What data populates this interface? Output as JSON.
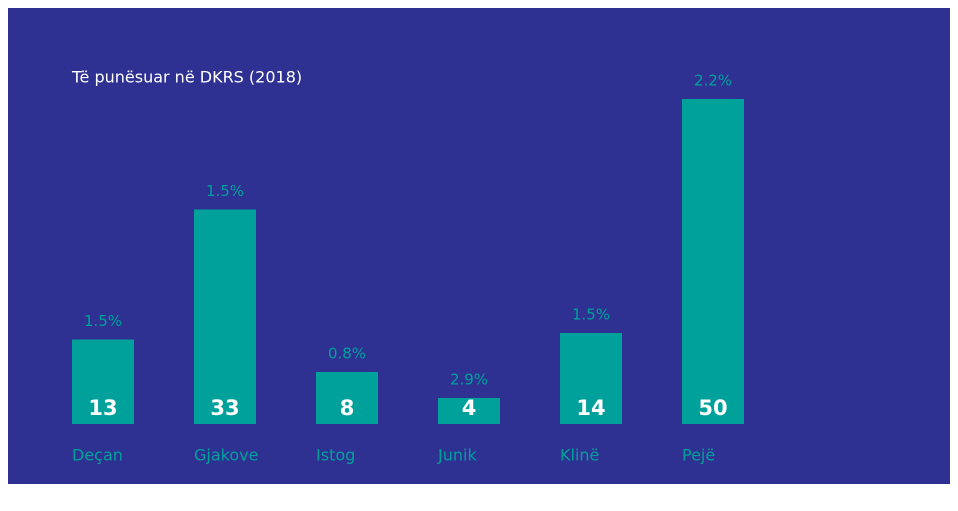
{
  "chart_data": {
    "type": "bar",
    "title": "Të punësuar në DKRS (2018)",
    "categories": [
      "Deçan",
      "Gjakove",
      "Istog",
      "Junik",
      "Klinë",
      "Pejë"
    ],
    "values": [
      13,
      33,
      8,
      4,
      14,
      50
    ],
    "annotations": [
      "1.5%",
      "1.5%",
      "0.8%",
      "2.9%",
      "1.5%",
      "2.2%"
    ],
    "color": "#00a19a",
    "background": "#2e3192"
  }
}
